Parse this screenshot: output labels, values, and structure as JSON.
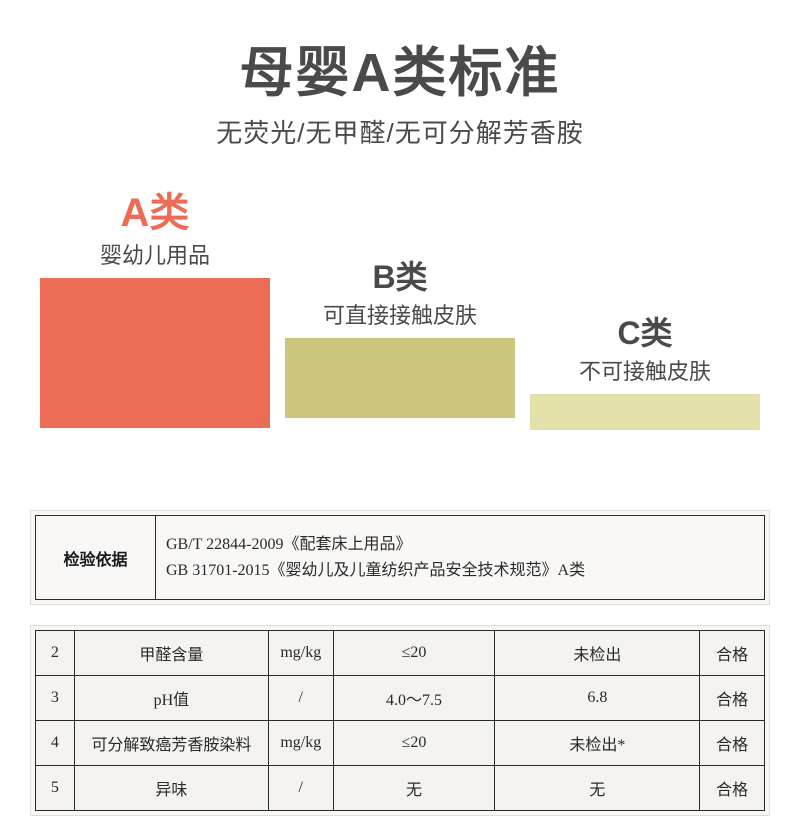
{
  "header": {
    "title": "母婴A类标准",
    "subtitle": "无荧光/无甲醛/无可分解芳香胺"
  },
  "categories": {
    "a": {
      "title": "A类",
      "desc": "婴幼儿用品",
      "title_color": "#eb6d55",
      "block_color": "#eb6d55",
      "block_height": 150
    },
    "b": {
      "title": "B类",
      "desc": "可直接接触皮肤",
      "title_color": "#4a4a4a",
      "block_color": "#ccc77f",
      "block_height": 80
    },
    "c": {
      "title": "C类",
      "desc": "不可接触皮肤",
      "title_color": "#4a4a4a",
      "block_color": "#e4e0aa",
      "block_height": 36
    }
  },
  "basis": {
    "label": "检验依据",
    "line1": "GB/T 22844-2009《配套床上用品》",
    "line2": "GB 31701-2015《婴幼儿及儿童纺织产品安全技术规范》A类"
  },
  "rows": [
    {
      "n": "2",
      "item": "甲醛含量",
      "unit": "mg/kg",
      "limit": "≤20",
      "result": "未检出",
      "verdict": "合格"
    },
    {
      "n": "3",
      "item": "pH值",
      "unit": "/",
      "limit": "4.0～7.5",
      "result": "6.8",
      "verdict": "合格"
    },
    {
      "n": "4",
      "item": "可分解致癌芳香胺染料",
      "unit": "mg/kg",
      "limit": "≤20",
      "result": "未检出*",
      "verdict": "合格"
    },
    {
      "n": "5",
      "item": "异味",
      "unit": "/",
      "limit": "无",
      "result": "无",
      "verdict": "合格"
    }
  ],
  "colors": {
    "text_dark": "#4a4a4a",
    "border": "#2a2a2a",
    "paper_bg": "#f9f8f6"
  }
}
